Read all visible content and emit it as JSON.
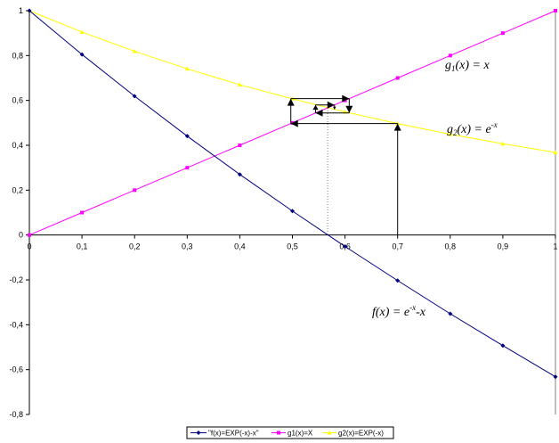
{
  "chart_data": {
    "type": "line",
    "x": [
      0,
      0.1,
      0.2,
      0.3,
      0.4,
      0.5,
      0.6,
      0.7,
      0.8,
      0.9,
      1
    ],
    "xlim": [
      0,
      1
    ],
    "ylim": [
      -0.8,
      1
    ],
    "x_ticks": [
      "0",
      "0,1",
      "0,2",
      "0,3",
      "0,4",
      "0,5",
      "0,6",
      "0,7",
      "0,8",
      "0,9",
      "1"
    ],
    "y_ticks": [
      "1",
      "0,8",
      "0,6",
      "0,4",
      "0,2",
      "0",
      "-0,2",
      "-0,4",
      "-0,6",
      "-0,8"
    ],
    "y_tick_values": [
      1,
      0.8,
      0.6,
      0.4,
      0.2,
      0,
      -0.2,
      -0.4,
      -0.6,
      -0.8
    ],
    "grid": false,
    "legend_position": "bottom",
    "series": [
      {
        "name": "\"f(x)=EXP(-x)-x\"",
        "color": "#000080",
        "marker": "diamond",
        "values": [
          1,
          0.805,
          0.619,
          0.441,
          0.27,
          0.107,
          -0.051,
          -0.203,
          -0.351,
          -0.493,
          -0.632
        ]
      },
      {
        "name": "g1(x)=X",
        "color": "#ff00ff",
        "marker": "square",
        "values": [
          0,
          0.1,
          0.2,
          0.3,
          0.4,
          0.5,
          0.6,
          0.7,
          0.8,
          0.9,
          1
        ]
      },
      {
        "name": "g2(x)=EXP(-x)",
        "color": "#ffff00",
        "marker": "triangle",
        "values": [
          1,
          0.905,
          0.819,
          0.741,
          0.67,
          0.607,
          0.549,
          0.497,
          0.449,
          0.407,
          0.368
        ]
      }
    ],
    "iteration_path": [
      [
        0.7,
        0
      ],
      [
        0.7,
        0.497
      ],
      [
        0.497,
        0.497
      ],
      [
        0.497,
        0.608
      ],
      [
        0.608,
        0.608
      ],
      [
        0.608,
        0.544
      ],
      [
        0.544,
        0.544
      ],
      [
        0.544,
        0.58
      ],
      [
        0.58,
        0.58
      ],
      [
        0.58,
        0.56
      ]
    ],
    "root_marker_x": 0.567,
    "annotations": {
      "g1": {
        "main": "g",
        "sub": "1",
        "rest": "(x) = x"
      },
      "g2": {
        "main": "g",
        "sub": "2",
        "rest": "(x) = e",
        "sup": "-x"
      },
      "f": {
        "main": "f(x) = e",
        "sup": "-x",
        "rest": "-x"
      }
    }
  }
}
